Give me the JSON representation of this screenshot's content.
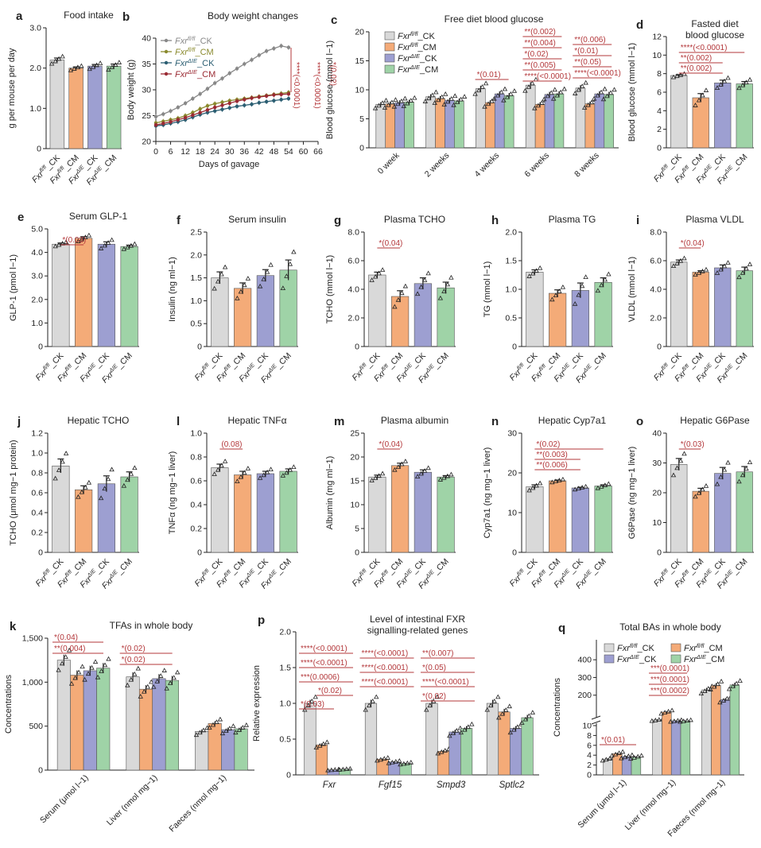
{
  "colors": {
    "ck": "#d9d9d9",
    "cm": "#f4ab78",
    "dck": "#9d9fd1",
    "dcm": "#9fd3a7",
    "sig": "#b3373a",
    "axis": "#222222",
    "line_ck": "#888888",
    "line_cm": "#8a8a2e",
    "line_dck": "#2b5e72",
    "line_dcm": "#9a2a33"
  },
  "groups": [
    "Fxrfl/fl_CK",
    "Fxrfl/fl_CM",
    "FxrΔIE_CK",
    "FxrΔIE_CM"
  ],
  "chart_data": [
    {
      "id": "a",
      "letter": "a",
      "type": "bar",
      "title": "Food intake",
      "ylabel": "g per mouse per day",
      "ylim": [
        0,
        3
      ],
      "yticks": [
        "0",
        "1.0",
        "2.0",
        "3.0"
      ],
      "values": [
        2.2,
        2.0,
        2.05,
        2.05
      ],
      "errors": [
        0.05,
        0.03,
        0.04,
        0.05
      ],
      "sig": []
    },
    {
      "id": "b",
      "letter": "b",
      "type": "line",
      "title": "Body weight changes",
      "ylabel": "Body weight (g)",
      "xlabel": "Days of gavage",
      "xlim": [
        0,
        66
      ],
      "ylim": [
        20,
        40
      ],
      "xticks": [
        "0",
        "6",
        "12",
        "18",
        "24",
        "30",
        "36",
        "42",
        "48",
        "54",
        "60",
        "66"
      ],
      "yticks": [
        "20",
        "25",
        "30",
        "35",
        "40"
      ],
      "x": [
        0,
        3,
        6,
        9,
        12,
        15,
        18,
        21,
        24,
        27,
        30,
        33,
        36,
        39,
        42,
        45,
        48,
        51,
        54
      ],
      "series": [
        {
          "name": "Fxrfl/fl_CK",
          "values": [
            24.8,
            25.3,
            25.9,
            26.6,
            27.4,
            28.3,
            29.2,
            30.2,
            31.3,
            32.2,
            33.2,
            34.1,
            35,
            35.8,
            36.7,
            37.5,
            38,
            38.5,
            38.2
          ]
        },
        {
          "name": "Fxrfl/fl_CM",
          "values": [
            23.6,
            23.9,
            24.2,
            24.5,
            25,
            25.6,
            26.3,
            26.9,
            27.3,
            27.6,
            27.9,
            28.1,
            28.3,
            28.5,
            28.7,
            28.9,
            29.1,
            29.3,
            29.5
          ]
        },
        {
          "name": "FxrΔIE_CK",
          "values": [
            23,
            23.2,
            23.5,
            23.8,
            24.2,
            24.7,
            25.2,
            25.6,
            25.9,
            26.2,
            26.5,
            26.8,
            27,
            27.2,
            27.5,
            27.7,
            27.9,
            28.1,
            28.3
          ]
        },
        {
          "name": "FxrΔIE_CM",
          "values": [
            23.2,
            23.5,
            23.8,
            24.2,
            24.6,
            25.1,
            25.6,
            26.1,
            26.6,
            27,
            27.4,
            27.8,
            28.1,
            28.4,
            28.6,
            28.8,
            29,
            29.1,
            29.2
          ]
        }
      ],
      "sig": [
        "****(<0.0001)",
        "****(<0.0001)",
        "*(0.02)"
      ]
    },
    {
      "id": "c",
      "letter": "c",
      "type": "bar",
      "title": "Free diet blood glucose",
      "ylabel": "Blood glucose (mmol l−1)",
      "ylim": [
        0,
        20
      ],
      "yticks": [
        "0",
        "5",
        "10",
        "15",
        "20"
      ],
      "categories": [
        "0 week",
        "2 weeks",
        "4 weeks",
        "6 weeks",
        "8 weeks"
      ],
      "series": [
        {
          "name": "Fxrfl/fl_CK",
          "values": [
            7.5,
            8.8,
            10.2,
            10.8,
            10.3
          ]
        },
        {
          "name": "Fxrfl/fl_CM",
          "values": [
            7.6,
            8.5,
            7.8,
            7.5,
            7.6
          ]
        },
        {
          "name": "FxrΔIE_CK",
          "values": [
            7.8,
            8.2,
            9.3,
            9.2,
            9.3
          ]
        },
        {
          "name": "FxrΔIE_CM",
          "values": [
            7.9,
            8.1,
            9.0,
            9.3,
            9.2
          ]
        }
      ],
      "sig_labels": [
        "*(0.01)",
        "**(0.002)",
        "**(0.004)",
        "*(0.02)",
        "**(0.005)",
        "****(<0.0001)",
        "**(0.006)",
        "*(0.01)",
        "**(0.05)",
        "****(<0.0001)"
      ]
    },
    {
      "id": "d",
      "letter": "d",
      "type": "bar",
      "title": "Fasted diet",
      "title2": "blood glucose",
      "ylabel": "Blood glucose (mmol l−1)",
      "ylim": [
        0,
        12
      ],
      "yticks": [
        "0",
        "2",
        "4",
        "6",
        "8",
        "10",
        "12"
      ],
      "values": [
        7.8,
        5.4,
        7.0,
        6.9
      ],
      "errors": [
        0.1,
        0.45,
        0.3,
        0.25
      ],
      "sig": [
        "****(<0.0001)",
        "**(0.002)",
        "**(0.002)"
      ]
    },
    {
      "id": "e",
      "letter": "e",
      "type": "bar",
      "title": "Serum GLP-1",
      "ylabel": "GLP-1 (pmol l−1)",
      "ylim": [
        0,
        5
      ],
      "yticks": [
        "0",
        "1.0",
        "2.0",
        "3.0",
        "4.0",
        "5.0"
      ],
      "values": [
        4.35,
        4.6,
        4.35,
        4.25
      ],
      "errors": [
        0.05,
        0.07,
        0.1,
        0.06
      ],
      "sig": [
        "*(0.03)"
      ]
    },
    {
      "id": "f",
      "letter": "f",
      "type": "bar",
      "title": "Serum insulin",
      "ylabel": "Insulin (ng ml−1)",
      "ylim": [
        0,
        2.5
      ],
      "yticks": [
        "0",
        "0.5",
        "1.0",
        "1.5",
        "2.0",
        "2.5"
      ],
      "values": [
        1.5,
        1.27,
        1.55,
        1.67
      ],
      "errors": [
        0.13,
        0.12,
        0.13,
        0.22
      ],
      "sig": []
    },
    {
      "id": "g",
      "letter": "g",
      "type": "bar",
      "title": "Plasma TCHO",
      "ylabel": "TCHO (mmol l−1)",
      "ylim": [
        0,
        8
      ],
      "yticks": [
        "0",
        "2.0",
        "4.0",
        "6.0",
        "8.0"
      ],
      "values": [
        5.0,
        3.5,
        4.4,
        4.1
      ],
      "errors": [
        0.2,
        0.4,
        0.4,
        0.4
      ],
      "sig": [
        "*(0.04)"
      ]
    },
    {
      "id": "h",
      "letter": "h",
      "type": "bar",
      "title": "Plasma TG",
      "ylabel": "TG (mmol l−1)",
      "ylim": [
        0,
        2
      ],
      "yticks": [
        "0",
        "0.5",
        "1.0",
        "1.5",
        "2.0"
      ],
      "values": [
        1.3,
        0.93,
        0.98,
        1.12
      ],
      "errors": [
        0.04,
        0.06,
        0.13,
        0.08
      ],
      "sig": []
    },
    {
      "id": "i",
      "letter": "i",
      "type": "bar",
      "title": "Plasma VLDL",
      "ylabel": "VLDL (mmol l−1)",
      "ylim": [
        0,
        8
      ],
      "yticks": [
        "0",
        "2.0",
        "4.0",
        "6.0",
        "8.0"
      ],
      "values": [
        5.9,
        5.2,
        5.5,
        5.3
      ],
      "errors": [
        0.15,
        0.1,
        0.2,
        0.25
      ],
      "sig": [
        "*(0.04)"
      ]
    },
    {
      "id": "j",
      "letter": "j",
      "type": "bar",
      "title": "Hepatic TCHO",
      "ylabel": "TCHO (μmol mg−1 protein)",
      "ylim": [
        0,
        1.2
      ],
      "yticks": [
        "0",
        "0.2",
        "0.4",
        "0.6",
        "0.8",
        "1.0",
        "1.2"
      ],
      "values": [
        0.87,
        0.63,
        0.69,
        0.76
      ],
      "errors": [
        0.07,
        0.04,
        0.08,
        0.05
      ],
      "sig": []
    },
    {
      "id": "l",
      "letter": "l",
      "type": "bar",
      "title": "Hepatic TNFα",
      "ylabel": "TNFα (ng mg−1 liver)",
      "ylim": [
        0,
        1.0
      ],
      "yticks": [
        "0",
        "0.2",
        "0.4",
        "0.6",
        "0.8",
        "1.0"
      ],
      "values": [
        0.71,
        0.65,
        0.66,
        0.68
      ],
      "errors": [
        0.03,
        0.03,
        0.02,
        0.02
      ],
      "sig": [
        "(0.08)"
      ]
    },
    {
      "id": "m",
      "letter": "m",
      "type": "bar",
      "title": "Plasma albumin",
      "ylabel": "Albumin (mg ml−1)",
      "ylim": [
        0,
        25
      ],
      "yticks": [
        "0",
        "5",
        "10",
        "15",
        "20",
        "25"
      ],
      "values": [
        15.8,
        18.2,
        16.8,
        15.8
      ],
      "errors": [
        0.4,
        0.5,
        0.5,
        0.3
      ],
      "sig": [
        "*(0.04)"
      ]
    },
    {
      "id": "n",
      "letter": "n",
      "type": "bar",
      "title": "Hepatic Cyp7a1",
      "ylabel": "Cyp7a1 (ng mg−1 liver)",
      "ylim": [
        0,
        30
      ],
      "yticks": [
        "0",
        "10",
        "20",
        "30"
      ],
      "values": [
        16.5,
        18.0,
        16.2,
        16.7
      ],
      "errors": [
        0.5,
        0.2,
        0.2,
        0.3
      ],
      "sig": [
        "*(0.02)",
        "**(0.003)",
        "**(0.006)"
      ]
    },
    {
      "id": "o",
      "letter": "o",
      "type": "bar",
      "title": "Hepatic G6Pase",
      "ylabel": "G6Pase (ng mg−1 liver)",
      "ylim": [
        0,
        40
      ],
      "yticks": [
        "0",
        "10",
        "20",
        "30",
        "40"
      ],
      "values": [
        29.5,
        20.5,
        26.5,
        27.0
      ],
      "errors": [
        2.0,
        1.0,
        2.0,
        1.8
      ],
      "sig": [
        "*(0.03)"
      ]
    },
    {
      "id": "k",
      "letter": "k",
      "type": "bar",
      "title": "TFAs in whole body",
      "ylabel": "Concentrations",
      "ylim": [
        0,
        1500
      ],
      "yticks": [
        "0",
        "500",
        "1,000",
        "1,500"
      ],
      "categories": [
        "Serum (μmol l−1)",
        "Liver (nmol mg−1)",
        "Faeces (nmol mg−1)"
      ],
      "series": [
        {
          "name": "Fxrfl/fl_CK",
          "values": [
            1250,
            1060,
            440
          ]
        },
        {
          "name": "Fxrfl/fl_CM",
          "values": [
            1080,
            920,
            530
          ]
        },
        {
          "name": "FxrΔIE_CK",
          "values": [
            1130,
            1040,
            460
          ]
        },
        {
          "name": "FxrΔIE_CM",
          "values": [
            1160,
            1020,
            470
          ]
        }
      ],
      "sig_labels": [
        "*(0.04)",
        "**(0.004)",
        "*(0.02)",
        "*(0.02)"
      ]
    },
    {
      "id": "p",
      "letter": "p",
      "type": "bar",
      "title": "Level of intestinal FXR",
      "title2": "signalling-related genes",
      "ylabel": "Relative expression",
      "ylim": [
        0,
        2.0
      ],
      "yticks": [
        "0",
        "0.5",
        "1.0",
        "1.5",
        "2.0"
      ],
      "categories": [
        "Fxr",
        "Fgf15",
        "Smpd3",
        "Sptlc2"
      ],
      "series": [
        {
          "name": "Fxrfl/fl_CK",
          "values": [
            1.0,
            1.0,
            1.0,
            1.0
          ]
        },
        {
          "name": "Fxrfl/fl_CM",
          "values": [
            0.42,
            0.22,
            0.33,
            0.88
          ]
        },
        {
          "name": "FxrΔIE_CK",
          "values": [
            0.07,
            0.18,
            0.6,
            0.65
          ]
        },
        {
          "name": "FxrΔIE_CM",
          "values": [
            0.08,
            0.16,
            0.65,
            0.8
          ]
        }
      ],
      "sig_labels": [
        "****(<0.0001)",
        "****(<0.0001)",
        "***(0.0006)",
        "*(0.02)",
        "*(0.03)",
        "****(<0.0001)",
        "****(<0.0001)",
        "****(<0.0001)",
        "**(0.007)",
        "*(0.05)",
        "****(<0.0001)",
        "*(0.02)"
      ]
    },
    {
      "id": "q",
      "letter": "q",
      "type": "bar",
      "title": "Total BAs in whole body",
      "ylabel": "Concentrations",
      "yticks": [
        "0",
        "2",
        "4",
        "6",
        "8",
        "10",
        "200",
        "300",
        "400"
      ],
      "categories": [
        "Serum (μmol l−1)",
        "Liver (nmol mg−1)",
        "Faeces (nmol mg−1)"
      ],
      "series": [
        {
          "name": "Fxrfl/fl_CK",
          "values": [
            3.2,
            60,
            230
          ]
        },
        {
          "name": "Fxrfl/fl_CM",
          "values": [
            4.3,
            105,
            255
          ]
        },
        {
          "name": "FxrΔIE_CK",
          "values": [
            3.7,
            55,
            175
          ]
        },
        {
          "name": "FxrΔIE_CM",
          "values": [
            3.6,
            55,
            258
          ]
        }
      ],
      "sig_labels": [
        "*(0.01)",
        "***(0.0001)",
        "***(0.0001)",
        "***(0.0002)"
      ]
    }
  ]
}
